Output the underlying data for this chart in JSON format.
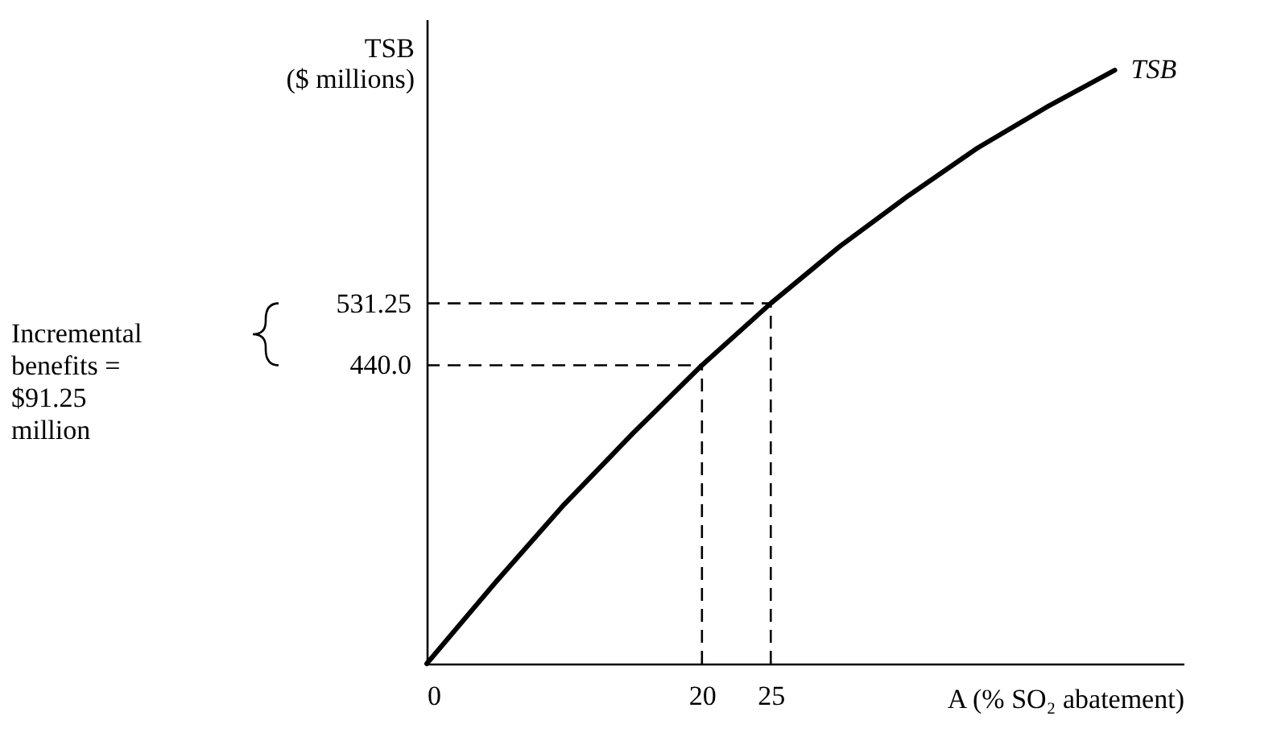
{
  "chart_data": {
    "type": "line",
    "xlabel": "A (% SO₂ abatement)",
    "ylabel": "TSB\n($ millions)",
    "annotations": [
      "Incremental\nbenefits =\n$91.25\nmillion"
    ],
    "x": [
      0,
      5,
      10,
      15,
      20,
      25,
      30,
      35,
      40,
      45,
      50
    ],
    "series": [
      {
        "name": "TSB",
        "color": "#000000",
        "values": [
          0,
          120,
          235,
          340,
          440,
          531.25,
          615,
          690,
          760,
          820,
          875
        ]
      }
    ],
    "xlim": [
      0,
      55
    ],
    "ylim": [
      0,
      950
    ],
    "xticks": [
      0,
      20,
      25
    ],
    "yticks": [
      {
        "value": 440,
        "label": "440.0"
      },
      531.25
    ],
    "ref_lines": [
      {
        "axis": "x",
        "value": 20,
        "line_style": "dashed"
      },
      {
        "axis": "x",
        "value": 25,
        "line_style": "dashed"
      },
      {
        "axis": "y",
        "value": 440,
        "line_style": "dashed"
      },
      {
        "axis": "y",
        "value": 531.25,
        "line_style": "dashed"
      }
    ]
  }
}
